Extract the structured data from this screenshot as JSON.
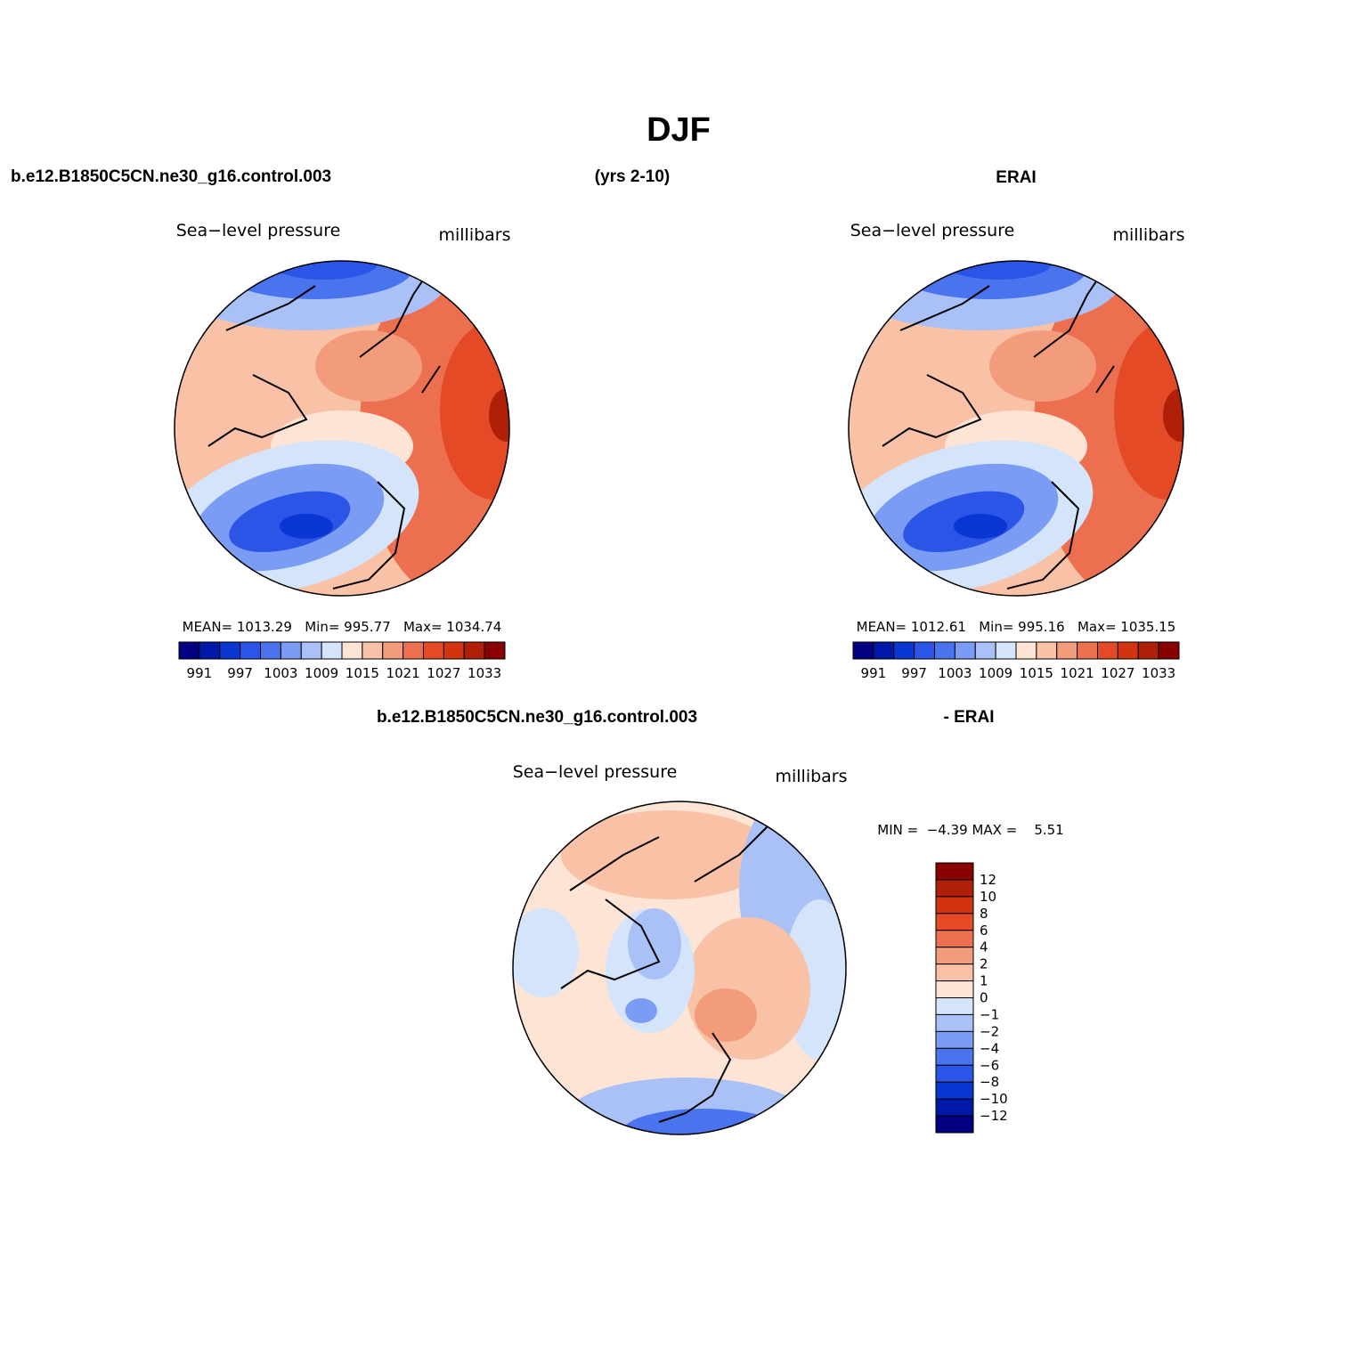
{
  "title": "DJF",
  "header": {
    "case": "b.e12.B1850C5CN.ne30_g16.control.003",
    "years": "(yrs 2-10)",
    "reference": "ERAI"
  },
  "panels": [
    {
      "title": "Sea−level pressure",
      "units": "millibars",
      "stats": "MEAN= 1013.29   Min= 995.77   Max= 1034.74",
      "colorbar": {
        "labels": [
          991,
          997,
          1003,
          1009,
          1015,
          1021,
          1027,
          1033
        ],
        "colors": [
          "#000080",
          "#0018a8",
          "#0a36d4",
          "#2a55e6",
          "#4a74ee",
          "#7a9cf5",
          "#a9c1f7",
          "#d4e4fa",
          "#fde4d4",
          "#f9c2a6",
          "#f39c7c",
          "#ec7050",
          "#e44a26",
          "#d23410",
          "#b02008",
          "#880000"
        ]
      }
    },
    {
      "title": "Sea−level pressure",
      "units": "millibars",
      "stats": "MEAN= 1012.61   Min= 995.16   Max= 1035.15",
      "colorbar": {
        "labels": [
          991,
          997,
          1003,
          1009,
          1015,
          1021,
          1027,
          1033
        ],
        "colors": [
          "#000080",
          "#0018a8",
          "#0a36d4",
          "#2a55e6",
          "#4a74ee",
          "#7a9cf5",
          "#a9c1f7",
          "#d4e4fa",
          "#fde4d4",
          "#f9c2a6",
          "#f39c7c",
          "#ec7050",
          "#e44a26",
          "#d23410",
          "#b02008",
          "#880000"
        ]
      }
    }
  ],
  "difference": {
    "case": "b.e12.B1850C5CN.ne30_g16.control.003",
    "reference": "- ERAI",
    "title": "Sea−level pressure",
    "units": "millibars",
    "stats": "MIN =  −4.39 MAX =    5.51",
    "colorbar": {
      "labels": [
        "12",
        "10",
        "8",
        "6",
        "4",
        "2",
        "1",
        "0",
        "−1",
        "−2",
        "−4",
        "−6",
        "−8",
        "−10",
        "−12"
      ],
      "colors": [
        "#880000",
        "#b02008",
        "#d23410",
        "#e44a26",
        "#ec7050",
        "#f39c7c",
        "#f9c2a6",
        "#fde4d4",
        "#d4e4fa",
        "#a9c1f7",
        "#7a9cf5",
        "#4a74ee",
        "#2a55e6",
        "#0a36d4",
        "#0018a8",
        "#000080"
      ]
    }
  }
}
